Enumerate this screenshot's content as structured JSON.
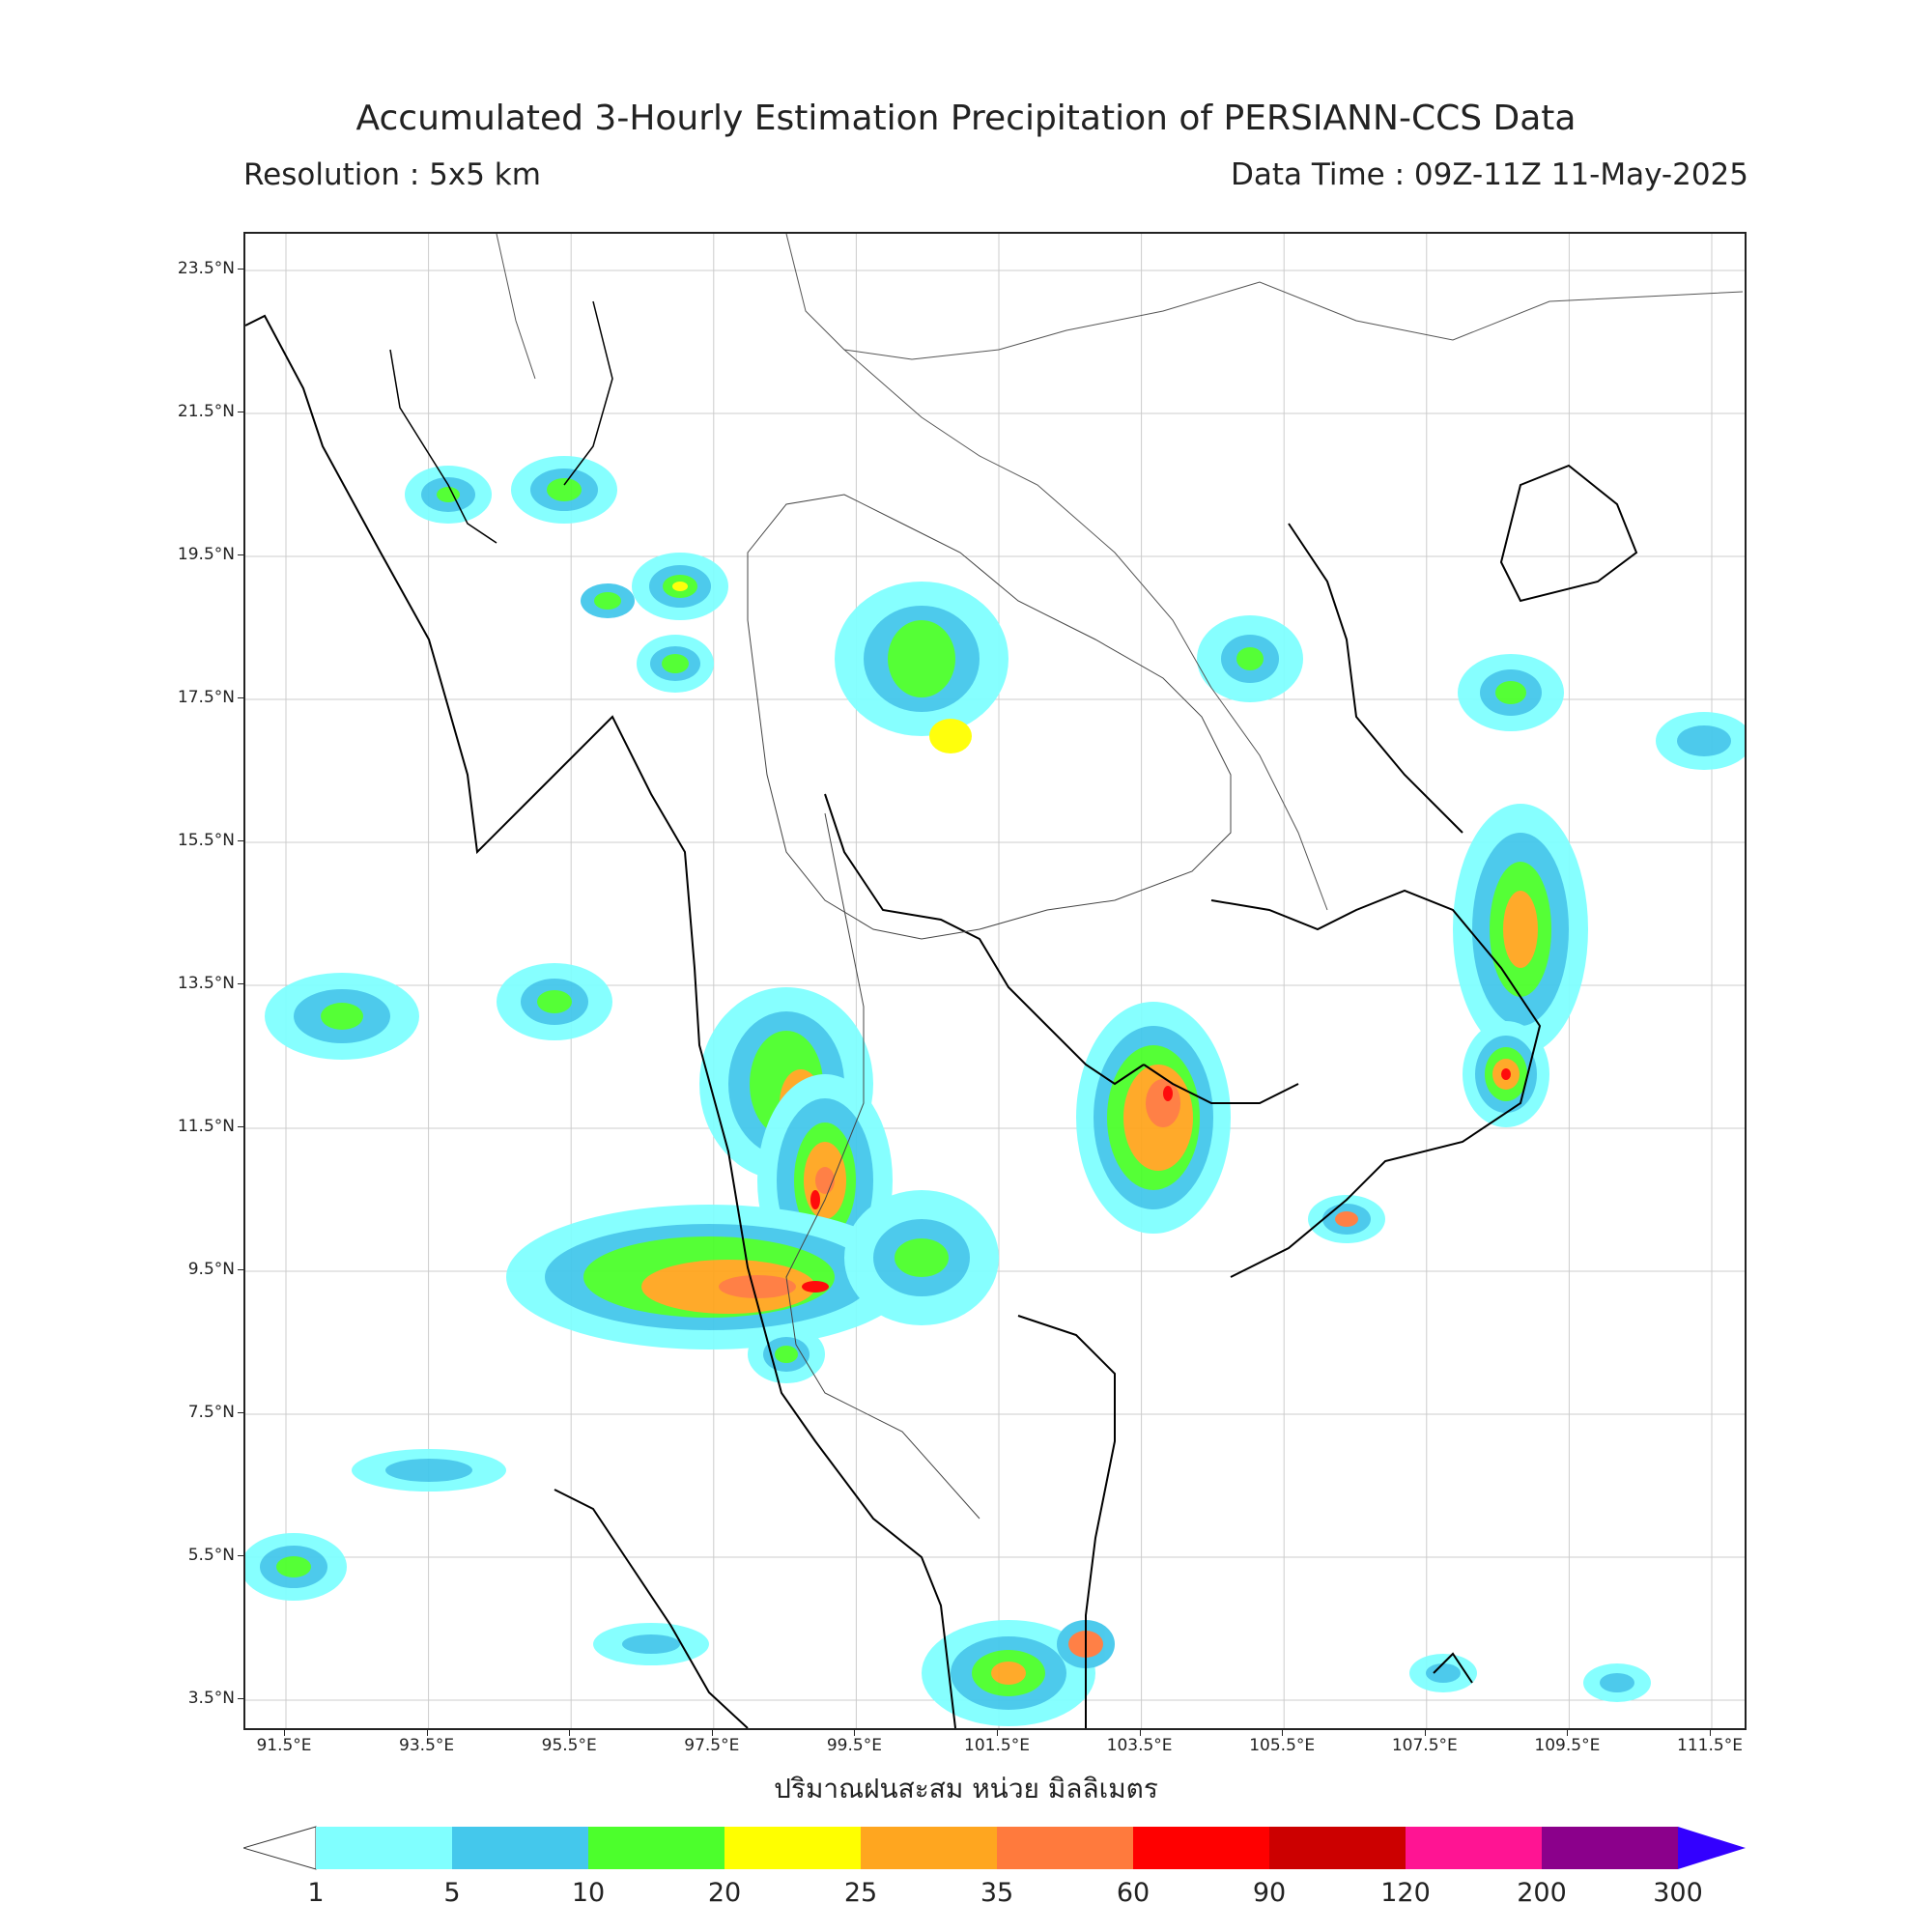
{
  "title": "Accumulated 3-Hourly Estimation Precipitation of PERSIANN-CCS Data",
  "resolution": "Resolution : 5x5 km",
  "data_time": "Data Time : 09Z-11Z 11-May-2025",
  "xlabel": "ปริมาณฝนสะสม หน่วย มิลลิเมตร",
  "lat_labels": [
    "23.5°N",
    "21.5°N",
    "19.5°N",
    "17.5°N",
    "15.5°N",
    "13.5°N",
    "11.5°N",
    "9.5°N",
    "7.5°N",
    "5.5°N",
    "3.5°N"
  ],
  "lon_labels": [
    "91.5°E",
    "93.5°E",
    "95.5°E",
    "97.5°E",
    "99.5°E",
    "101.5°E",
    "103.5°E",
    "105.5°E",
    "107.5°E",
    "109.5°E",
    "111.5°E"
  ],
  "colorbar": {
    "labels": [
      "1",
      "5",
      "10",
      "20",
      "25",
      "35",
      "60",
      "90",
      "120",
      "200",
      "300"
    ],
    "colors": [
      "#80ffff",
      "#44c8ec",
      "#4cff2c",
      "#ffff00",
      "#ffa61f",
      "#ff7a3d",
      "#ff0000",
      "#cc0000",
      "#ff1493",
      "#8b008b"
    ],
    "over_color": "#3300ff",
    "under_color": "#ffffff"
  },
  "icons": {
    "map": "precipitation-map"
  }
}
